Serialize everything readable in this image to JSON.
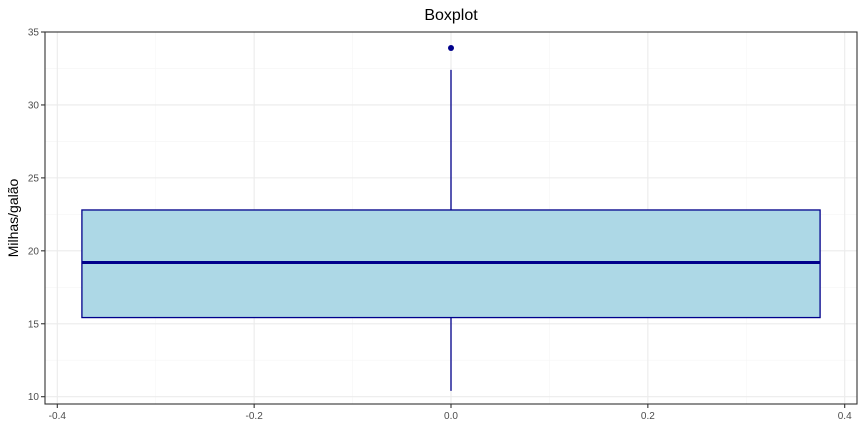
{
  "chart_data": {
    "type": "boxplot",
    "title": "Boxplot",
    "xlabel": "",
    "ylabel": "Milhas/galão",
    "xlim": [
      -0.4125,
      0.4125
    ],
    "ylim": [
      9.5,
      35.0
    ],
    "x_ticks": [
      -0.4,
      -0.2,
      0.0,
      0.2,
      0.4
    ],
    "x_tick_labels": [
      "-0.4",
      "-0.2",
      "0.0",
      "0.2",
      "0.4"
    ],
    "y_ticks": [
      10,
      15,
      20,
      25,
      30,
      35
    ],
    "y_tick_labels": [
      "10",
      "15",
      "20",
      "25",
      "30",
      "35"
    ],
    "grid": true,
    "box": {
      "x_center": 0.0,
      "x_min": -0.375,
      "x_max": 0.375,
      "whisker_low": 10.4,
      "q1": 15.425,
      "median": 19.2,
      "q3": 22.8,
      "whisker_high": 32.4,
      "outliers": [
        33.9
      ]
    },
    "colors": {
      "box_fill": "#add8e6",
      "box_stroke": "#00008b",
      "grid_major": "#ebebeb",
      "grid_minor": "#f5f5f5",
      "panel_border": "#333333"
    }
  }
}
